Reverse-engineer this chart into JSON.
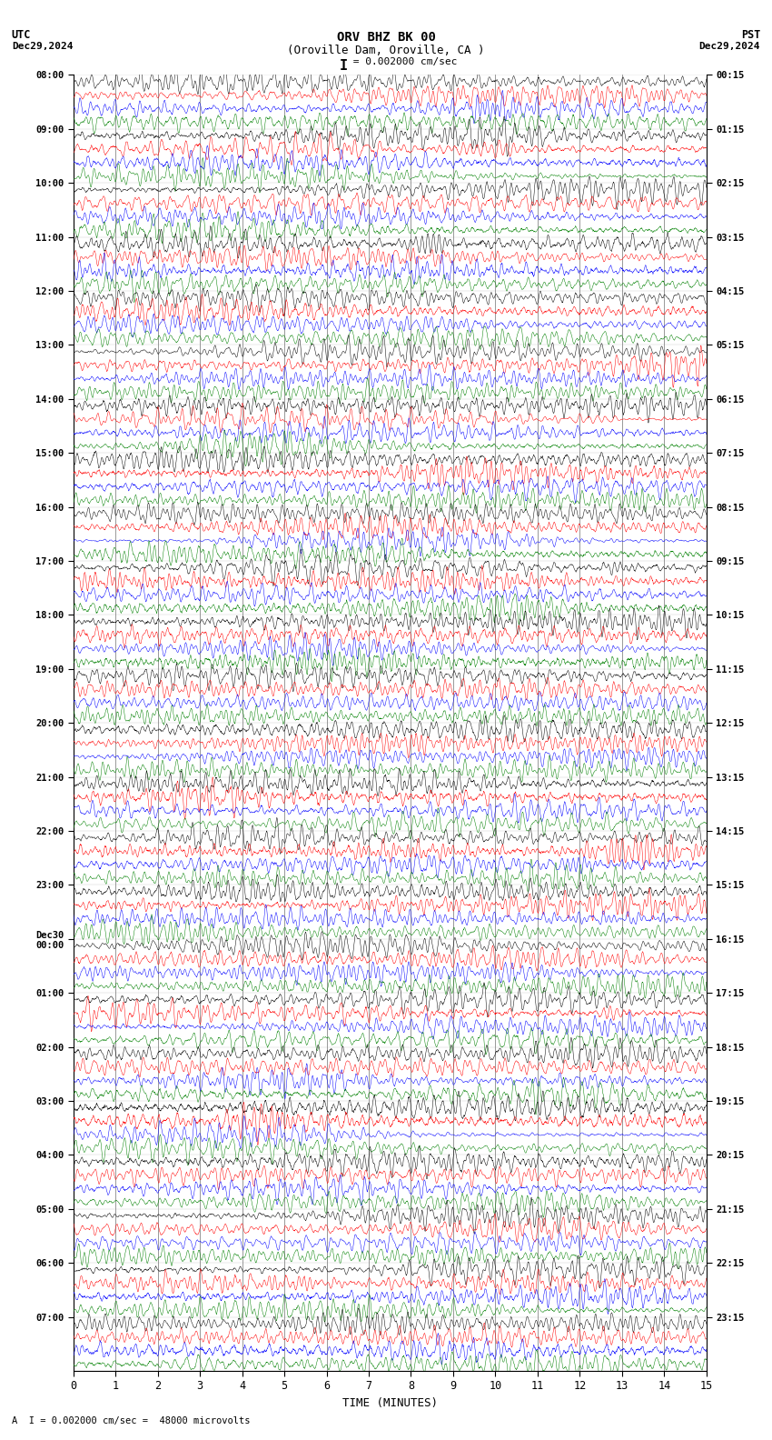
{
  "title_line1": "ORV BHZ BK 00",
  "title_line2": "(Oroville Dam, Oroville, CA )",
  "scale_label": "= 0.002000 cm/sec",
  "left_header_line1": "UTC",
  "left_header_line2": "Dec29,2024",
  "right_header_line1": "PST",
  "right_header_line2": "Dec29,2024",
  "bottom_annotation": "A  I = 0.002000 cm/sec =  48000 microvolts",
  "xlabel": "TIME (MINUTES)",
  "x_ticks": [
    0,
    1,
    2,
    3,
    4,
    5,
    6,
    7,
    8,
    9,
    10,
    11,
    12,
    13,
    14,
    15
  ],
  "colors": [
    "black",
    "red",
    "blue",
    "green"
  ],
  "num_channels": 4,
  "fig_width": 8.5,
  "fig_height": 15.84,
  "dpi": 100,
  "left_times_utc": [
    "08:00",
    "09:00",
    "10:00",
    "11:00",
    "12:00",
    "13:00",
    "14:00",
    "15:00",
    "16:00",
    "17:00",
    "18:00",
    "19:00",
    "20:00",
    "21:00",
    "22:00",
    "23:00",
    "Dec30\n00:00",
    "01:00",
    "02:00",
    "03:00",
    "04:00",
    "05:00",
    "06:00",
    "07:00"
  ],
  "right_times_pst": [
    "00:15",
    "01:15",
    "02:15",
    "03:15",
    "04:15",
    "05:15",
    "06:15",
    "07:15",
    "08:15",
    "09:15",
    "10:15",
    "11:15",
    "12:15",
    "13:15",
    "14:15",
    "15:15",
    "16:15",
    "17:15",
    "18:15",
    "19:15",
    "20:15",
    "21:15",
    "22:15",
    "23:15"
  ],
  "num_rows": 24,
  "minutes": 15,
  "samples_per_minute": 200,
  "background_color": "white",
  "grid_color": "#888888",
  "grid_linewidth": 0.6,
  "trace_linewidth": 0.35,
  "noise_amplitude": 0.09,
  "signal_amplitude": 0.07
}
